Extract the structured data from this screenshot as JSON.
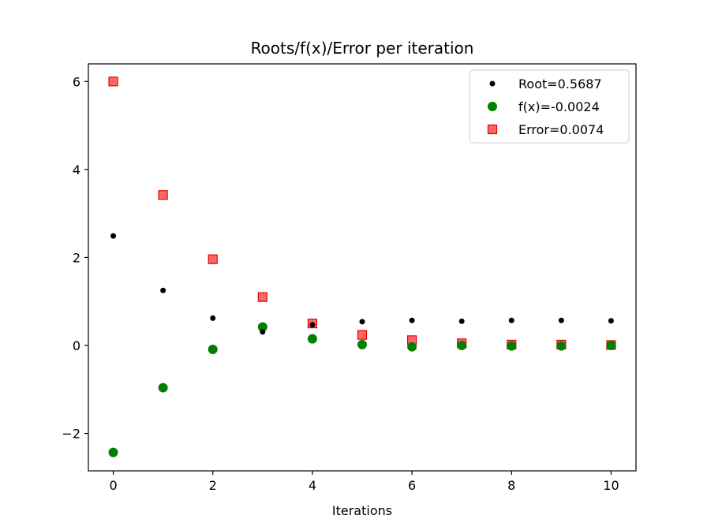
{
  "chart_data": {
    "type": "scatter",
    "title": "Roots/f(x)/Error per iteration",
    "xlabel": "Iterations",
    "ylabel": "",
    "xlim": [
      -0.5,
      10.5
    ],
    "ylim": [
      -2.85,
      6.4
    ],
    "xticks": [
      0,
      2,
      4,
      6,
      8,
      10
    ],
    "xtick_labels": [
      "0",
      "2",
      "4",
      "6",
      "8",
      "10"
    ],
    "yticks": [
      -2,
      0,
      2,
      4,
      6
    ],
    "ytick_labels": [
      "−2",
      "0",
      "2",
      "4",
      "6"
    ],
    "grid": false,
    "legend_position": "top-right",
    "x": [
      0,
      1,
      2,
      3,
      4,
      5,
      6,
      7,
      8,
      9,
      10
    ],
    "series": [
      {
        "name": "Root=0.5687",
        "marker": "small-circle",
        "color": "#000000",
        "values": [
          2.49,
          1.25,
          0.62,
          0.31,
          0.47,
          0.54,
          0.57,
          0.55,
          0.57,
          0.57,
          0.56
        ]
      },
      {
        "name": "f(x)=-0.0024",
        "marker": "circle",
        "color": "#008000",
        "values": [
          -2.43,
          -0.96,
          -0.09,
          0.42,
          0.15,
          0.02,
          -0.03,
          0.0,
          -0.01,
          -0.01,
          0.0
        ]
      },
      {
        "name": "Error=0.0074",
        "marker": "square",
        "color": "#ff4d4d",
        "edge_color": "#e60000",
        "values": [
          6.0,
          3.42,
          1.96,
          1.1,
          0.5,
          0.24,
          0.12,
          0.05,
          0.02,
          0.02,
          0.01
        ]
      }
    ]
  }
}
